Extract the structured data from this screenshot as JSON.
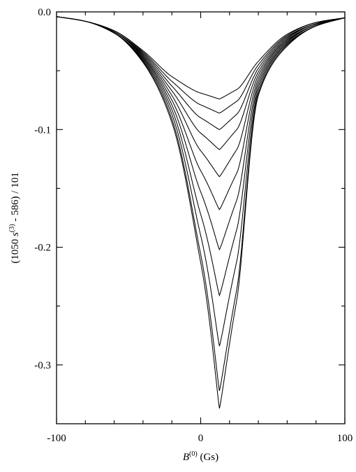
{
  "chart_data": {
    "type": "line",
    "title": "",
    "xlabel": "B^(0) (Gs)",
    "xlabel_parts": {
      "main": "B",
      "sup": "(0)",
      "unit": " (Gs)"
    },
    "ylabel": "(1050 s^(3) - 586) / 101",
    "ylabel_parts": {
      "pre": "(1050 ",
      "var": "s",
      "sup": "(3)",
      "post": " - 586) / 101"
    },
    "xlim": [
      -100,
      100
    ],
    "ylim": [
      -0.35,
      0.0
    ],
    "x_major_ticks": [
      -100,
      0,
      100
    ],
    "x_tick_labels": [
      "-100",
      "0",
      "100"
    ],
    "x_minor_ticks": [
      -80,
      -60,
      -40,
      -20,
      20,
      40,
      60,
      80
    ],
    "y_major_ticks": [
      0.0,
      -0.1,
      -0.2,
      -0.3
    ],
    "y_tick_labels": [
      "0.0",
      "-0.1",
      "-0.2",
      "-0.3"
    ],
    "y_minor_ticks": [
      -0.05,
      -0.15,
      -0.25
    ],
    "grid": false,
    "legend": "none",
    "center_x": 13,
    "series": [
      {
        "min_y": -0.074,
        "points": [
          [
            -100,
            -0.004
          ],
          [
            -80,
            -0.008
          ],
          [
            -60,
            -0.016
          ],
          [
            -40,
            -0.033
          ],
          [
            -20,
            -0.055
          ],
          [
            0,
            -0.069
          ],
          [
            13,
            -0.074
          ],
          [
            25,
            -0.066
          ],
          [
            40,
            -0.042
          ],
          [
            60,
            -0.019
          ],
          [
            80,
            -0.009
          ],
          [
            100,
            -0.005
          ]
        ]
      },
      {
        "min_y": -0.086,
        "points": [
          [
            -100,
            -0.004
          ],
          [
            -80,
            -0.008
          ],
          [
            -60,
            -0.016
          ],
          [
            -40,
            -0.034
          ],
          [
            -20,
            -0.059
          ],
          [
            0,
            -0.079
          ],
          [
            13,
            -0.086
          ],
          [
            25,
            -0.076
          ],
          [
            40,
            -0.045
          ],
          [
            60,
            -0.02
          ],
          [
            80,
            -0.009
          ],
          [
            100,
            -0.005
          ]
        ]
      },
      {
        "min_y": -0.1,
        "points": [
          [
            -100,
            -0.004
          ],
          [
            -80,
            -0.008
          ],
          [
            -60,
            -0.017
          ],
          [
            -40,
            -0.035
          ],
          [
            -20,
            -0.063
          ],
          [
            0,
            -0.09
          ],
          [
            13,
            -0.1
          ],
          [
            25,
            -0.087
          ],
          [
            40,
            -0.048
          ],
          [
            60,
            -0.021
          ],
          [
            80,
            -0.01
          ],
          [
            100,
            -0.005
          ]
        ]
      },
      {
        "min_y": -0.117,
        "points": [
          [
            -100,
            -0.004
          ],
          [
            -80,
            -0.008
          ],
          [
            -60,
            -0.017
          ],
          [
            -40,
            -0.036
          ],
          [
            -20,
            -0.067
          ],
          [
            0,
            -0.103
          ],
          [
            13,
            -0.117
          ],
          [
            25,
            -0.1
          ],
          [
            40,
            -0.051
          ],
          [
            60,
            -0.022
          ],
          [
            80,
            -0.01
          ],
          [
            100,
            -0.005
          ]
        ]
      },
      {
        "min_y": -0.14,
        "points": [
          [
            -100,
            -0.004
          ],
          [
            -80,
            -0.008
          ],
          [
            -60,
            -0.017
          ],
          [
            -40,
            -0.037
          ],
          [
            -20,
            -0.071
          ],
          [
            0,
            -0.118
          ],
          [
            13,
            -0.14
          ],
          [
            25,
            -0.117
          ],
          [
            40,
            -0.054
          ],
          [
            60,
            -0.023
          ],
          [
            80,
            -0.01
          ],
          [
            100,
            -0.005
          ]
        ]
      },
      {
        "min_y": -0.168,
        "points": [
          [
            -100,
            -0.004
          ],
          [
            -80,
            -0.008
          ],
          [
            -60,
            -0.017
          ],
          [
            -40,
            -0.038
          ],
          [
            -20,
            -0.075
          ],
          [
            0,
            -0.135
          ],
          [
            13,
            -0.168
          ],
          [
            25,
            -0.137
          ],
          [
            40,
            -0.057
          ],
          [
            60,
            -0.024
          ],
          [
            80,
            -0.011
          ],
          [
            100,
            -0.005
          ]
        ]
      },
      {
        "min_y": -0.202,
        "points": [
          [
            -100,
            -0.004
          ],
          [
            -80,
            -0.008
          ],
          [
            -60,
            -0.018
          ],
          [
            -40,
            -0.039
          ],
          [
            -20,
            -0.079
          ],
          [
            0,
            -0.153
          ],
          [
            13,
            -0.202
          ],
          [
            25,
            -0.16
          ],
          [
            40,
            -0.06
          ],
          [
            60,
            -0.025
          ],
          [
            80,
            -0.011
          ],
          [
            100,
            -0.005
          ]
        ]
      },
      {
        "min_y": -0.241,
        "points": [
          [
            -100,
            -0.004
          ],
          [
            -80,
            -0.008
          ],
          [
            -60,
            -0.018
          ],
          [
            -40,
            -0.04
          ],
          [
            -20,
            -0.083
          ],
          [
            0,
            -0.172
          ],
          [
            13,
            -0.241
          ],
          [
            25,
            -0.185
          ],
          [
            40,
            -0.063
          ],
          [
            60,
            -0.026
          ],
          [
            80,
            -0.011
          ],
          [
            100,
            -0.005
          ]
        ]
      },
      {
        "min_y": -0.284,
        "points": [
          [
            -100,
            -0.004
          ],
          [
            -80,
            -0.008
          ],
          [
            -60,
            -0.018
          ],
          [
            -40,
            -0.041
          ],
          [
            -20,
            -0.087
          ],
          [
            0,
            -0.19
          ],
          [
            13,
            -0.284
          ],
          [
            25,
            -0.212
          ],
          [
            40,
            -0.066
          ],
          [
            60,
            -0.027
          ],
          [
            80,
            -0.012
          ],
          [
            100,
            -0.005
          ]
        ]
      },
      {
        "min_y": -0.322,
        "points": [
          [
            -100,
            -0.004
          ],
          [
            -80,
            -0.008
          ],
          [
            -60,
            -0.018
          ],
          [
            -40,
            -0.042
          ],
          [
            -20,
            -0.091
          ],
          [
            0,
            -0.206
          ],
          [
            13,
            -0.322
          ],
          [
            25,
            -0.236
          ],
          [
            40,
            -0.069
          ],
          [
            60,
            -0.028
          ],
          [
            80,
            -0.012
          ],
          [
            100,
            -0.005
          ]
        ]
      },
      {
        "min_y": -0.337,
        "points": [
          [
            -100,
            -0.004
          ],
          [
            -80,
            -0.008
          ],
          [
            -60,
            -0.018
          ],
          [
            -40,
            -0.043
          ],
          [
            -20,
            -0.094
          ],
          [
            0,
            -0.213
          ],
          [
            13,
            -0.337
          ],
          [
            25,
            -0.245
          ],
          [
            40,
            -0.071
          ],
          [
            60,
            -0.029
          ],
          [
            80,
            -0.012
          ],
          [
            100,
            -0.005
          ]
        ]
      }
    ]
  }
}
